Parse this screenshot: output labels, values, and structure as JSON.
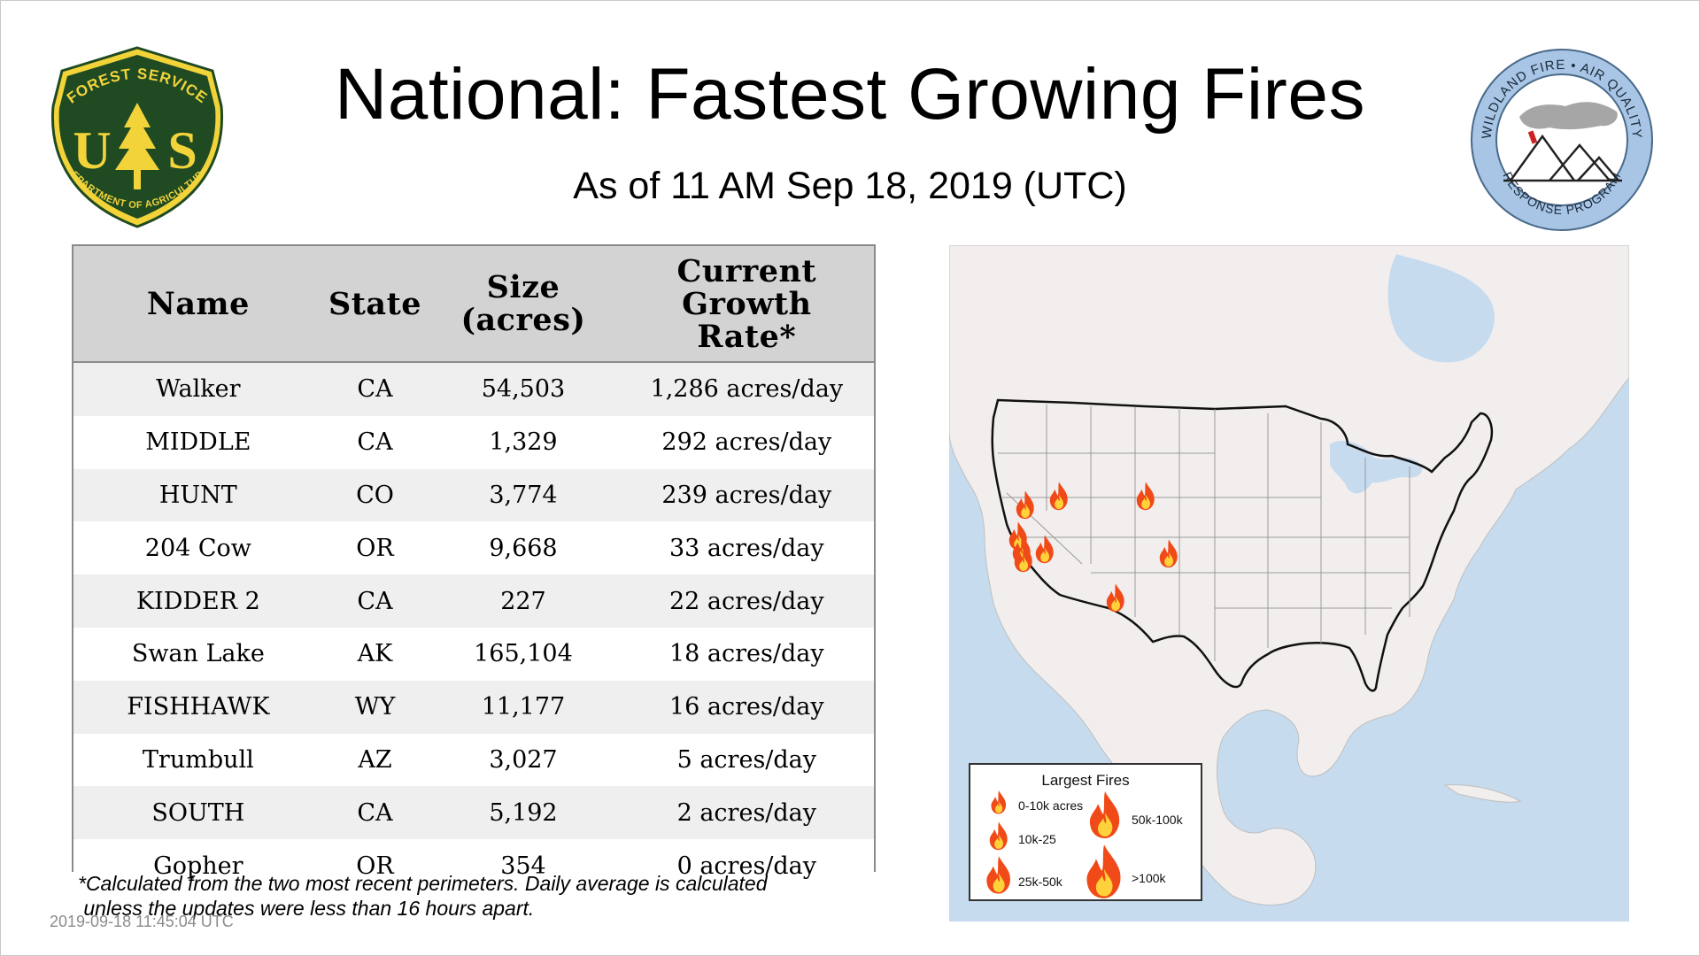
{
  "header": {
    "title": "National: Fastest Growing Fires",
    "subtitle": "As of 11 AM Sep 18, 2019 (UTC)"
  },
  "logos": {
    "forest_service": {
      "top_text": "FOREST SERVICE",
      "bottom_text": "DEPARTMENT OF AGRICULTURE",
      "letters": "US",
      "colors": {
        "shield_fill": "#1f4a22",
        "gold": "#f2d43a"
      }
    },
    "wildland_fire": {
      "top_text": "WILDLAND FIRE • AIR QUALITY",
      "bottom_text": "RESPONSE PROGRAM",
      "colors": {
        "ring": "#a9c5e6",
        "smoke": "#a6a6a6",
        "accent": "#cc2222"
      }
    }
  },
  "table": {
    "headers": {
      "name": "Name",
      "state": "State",
      "size_l1": "Size",
      "size_l2": "(acres)",
      "rate_l1": "Current",
      "rate_l2": "Growth",
      "rate_l3": "Rate*"
    },
    "rows": [
      {
        "name": "Walker",
        "state": "CA",
        "size": "54,503",
        "rate": "1,286 acres/day"
      },
      {
        "name": "MIDDLE",
        "state": "CA",
        "size": "1,329",
        "rate": "292 acres/day"
      },
      {
        "name": "HUNT",
        "state": "CO",
        "size": "3,774",
        "rate": "239 acres/day"
      },
      {
        "name": "204 Cow",
        "state": "OR",
        "size": "9,668",
        "rate": "33 acres/day"
      },
      {
        "name": "KIDDER 2",
        "state": "CA",
        "size": "227",
        "rate": "22 acres/day"
      },
      {
        "name": "Swan Lake",
        "state": "AK",
        "size": "165,104",
        "rate": "18 acres/day"
      },
      {
        "name": "FISHHAWK",
        "state": "WY",
        "size": "11,177",
        "rate": "16 acres/day"
      },
      {
        "name": "Trumbull",
        "state": "AZ",
        "size": "3,027",
        "rate": "5 acres/day"
      },
      {
        "name": "SOUTH",
        "state": "CA",
        "size": "5,192",
        "rate": "2 acres/day"
      },
      {
        "name": "Gopher",
        "state": "OR",
        "size": "354",
        "rate": "0 acres/day"
      }
    ],
    "colors": {
      "header_bg": "#d3d3d3",
      "row_alt": "#efefef",
      "border": "#8a8a8a"
    }
  },
  "footnote": {
    "line1": "*Calculated from the two most recent perimeters. Daily average is calculated",
    "line2": " unless the updates were less than 16 hours apart."
  },
  "timestamp": "2019-09-18 11:45:04 UTC",
  "legend": {
    "title": "Largest Fires",
    "items": [
      {
        "label": "0-10k acres",
        "icon": "flame-icon"
      },
      {
        "label": "10k-25",
        "icon": "flame-icon"
      },
      {
        "label": "25k-50k",
        "icon": "flame-icon"
      },
      {
        "label": "50k-100k",
        "icon": "flame-icon"
      },
      {
        "label": ">100k",
        "icon": "flame-icon"
      }
    ]
  },
  "map": {
    "colors": {
      "ocean": "#c6dbee",
      "land": "#f2eeee",
      "border": "#111111",
      "state_lines": "#999999",
      "flame": "#f04a18",
      "flame_core": "#ffd13a"
    },
    "fire_icon_count": 9
  }
}
